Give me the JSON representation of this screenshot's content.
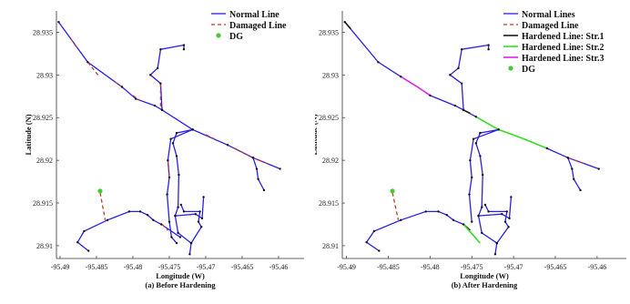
{
  "chart_data": [
    {
      "type": "line",
      "caption": "(a) Before Hardening",
      "xlabel": "Longitude (W)",
      "ylabel": "Latitude (N)",
      "xlim": [
        -95.4905,
        -95.4565
      ],
      "ylim": [
        28.9085,
        28.9375
      ],
      "xticks": [
        "-95.49",
        "-95.485",
        "-95.48",
        "-95.475",
        "-95.47",
        "-95.465",
        "-95.46"
      ],
      "xtick_values": [
        -95.49,
        -95.485,
        -95.48,
        -95.475,
        -95.47,
        -95.465,
        -95.46
      ],
      "yticks": [
        "28.91",
        "28.915",
        "28.92",
        "28.925",
        "28.93",
        "28.935"
      ],
      "ytick_values": [
        28.91,
        28.915,
        28.92,
        28.925,
        28.93,
        28.935
      ],
      "legend_position": "top-right",
      "legend": [
        {
          "label": "Normal Line",
          "style": "normal"
        },
        {
          "label": "Damaged Line",
          "style": "damaged"
        },
        {
          "label": "DG",
          "style": "dg"
        }
      ],
      "series": [
        {
          "name": "Normal Line",
          "style": "normal",
          "segments": [
            [
              [
                -95.4902,
                28.9362
              ],
              [
                -95.4862,
                28.9315
              ],
              [
                -95.4815,
                28.9286
              ],
              [
                -95.4796,
                28.9272
              ],
              [
                -95.477,
                28.9264
              ],
              [
                -95.476,
                28.9259
              ],
              [
                -95.4718,
                28.9236
              ],
              [
                -95.467,
                28.9218
              ],
              [
                -95.4635,
                28.9203
              ],
              [
                -95.4598,
                28.919
              ]
            ],
            [
              [
                -95.476,
                28.9259
              ],
              [
                -95.4762,
                28.929
              ],
              [
                -95.4776,
                28.93
              ],
              [
                -95.4766,
                28.9308
              ],
              [
                -95.4762,
                28.933
              ],
              [
                -95.473,
                28.9335
              ],
              [
                -95.473,
                28.933
              ]
            ],
            [
              [
                -95.4718,
                28.9236
              ],
              [
                -95.4748,
                28.9225
              ],
              [
                -95.4752,
                28.92
              ],
              [
                -95.475,
                28.918
              ],
              [
                -95.4753,
                28.916
              ],
              [
                -95.475,
                28.9128
              ],
              [
                -95.4747,
                28.911
              ],
              [
                -95.474,
                28.9103
              ]
            ],
            [
              [
                -95.4718,
                28.9236
              ],
              [
                -95.474,
                28.9232
              ],
              [
                -95.4745,
                28.922
              ],
              [
                -95.474,
                28.9205
              ],
              [
                -95.4737,
                28.9183
              ],
              [
                -95.4738,
                28.9145
              ],
              [
                -95.4742,
                28.9135
              ],
              [
                -95.4738,
                28.9115
              ],
              [
                -95.472,
                28.9103
              ],
              [
                -95.4722,
                28.909
              ]
            ],
            [
              [
                -95.472,
                28.9103
              ],
              [
                -95.4706,
                28.9122
              ],
              [
                -95.471,
                28.9128
              ],
              [
                -95.4708,
                28.914
              ],
              [
                -95.473,
                28.914
              ],
              [
                -95.4734,
                28.9148
              ]
            ],
            [
              [
                -95.4742,
                28.9135
              ],
              [
                -95.4714,
                28.9137
              ],
              [
                -95.4705,
                28.9132
              ],
              [
                -95.4703,
                28.9157
              ]
            ],
            [
              [
                -95.4735,
                28.911
              ],
              [
                -95.4761,
                28.9125
              ],
              [
                -95.4772,
                28.913
              ],
              [
                -95.478,
                28.9136
              ],
              [
                -95.479,
                28.914
              ],
              [
                -95.4805,
                28.914
              ],
              [
                -95.4835,
                28.913
              ],
              [
                -95.4867,
                28.9117
              ],
              [
                -95.4876,
                28.9104
              ],
              [
                -95.4861,
                28.9094
              ]
            ],
            [
              [
                -95.4635,
                28.9203
              ],
              [
                -95.463,
                28.919
              ],
              [
                -95.4628,
                28.9178
              ],
              [
                -95.462,
                28.9165
              ]
            ]
          ]
        },
        {
          "name": "Damaged Line",
          "style": "damaged",
          "segments": [
            [
              [
                -95.4885,
                28.9342
              ],
              [
                -95.4876,
                28.9331
              ]
            ],
            [
              [
                -95.4862,
                28.9315
              ],
              [
                -95.4848,
                28.93
              ]
            ],
            [
              [
                -95.4825,
                28.9292
              ],
              [
                -95.481,
                28.9283
              ]
            ],
            [
              [
                -95.48,
                28.9276
              ],
              [
                -95.479,
                28.927
              ]
            ],
            [
              [
                -95.4762,
                28.929
              ],
              [
                -95.4762,
                28.926
              ]
            ],
            [
              [
                -95.47,
                28.923
              ],
              [
                -95.4688,
                28.9225
              ]
            ],
            [
              [
                -95.466,
                28.9214
              ],
              [
                -95.464,
                28.9205
              ]
            ],
            [
              [
                -95.4635,
                28.9203
              ],
              [
                -95.4615,
                28.9196
              ]
            ],
            [
              [
                -95.4845,
                28.9162
              ],
              [
                -95.4838,
                28.913
              ]
            ],
            [
              [
                -95.4752,
                28.92
              ],
              [
                -95.475,
                28.918
              ]
            ],
            [
              [
                -95.476,
                28.9125
              ],
              [
                -95.4752,
                28.9118
              ]
            ]
          ]
        },
        {
          "name": "DG",
          "style": "dg",
          "points": [
            [
              -95.4845,
              28.9164
            ]
          ]
        }
      ]
    },
    {
      "type": "line",
      "caption": "(b) After Hardening",
      "xlabel": "Longitude (W)",
      "ylabel": "Latitude (N)",
      "xlim": [
        -95.4905,
        -95.4565
      ],
      "ylim": [
        28.9085,
        28.9375
      ],
      "xticks": [
        "-95.49",
        "-95.485",
        "-95.48",
        "-95.475",
        "-95.47",
        "-95.465",
        "-95.46"
      ],
      "xtick_values": [
        -95.49,
        -95.485,
        -95.48,
        -95.475,
        -95.47,
        -95.465,
        -95.46
      ],
      "yticks": [
        "28.91",
        "28.915",
        "28.92",
        "28.925",
        "28.93",
        "28.935"
      ],
      "ytick_values": [
        28.91,
        28.915,
        28.92,
        28.925,
        28.93,
        28.935
      ],
      "legend_position": "top-right",
      "legend": [
        {
          "label": "Normal Lines",
          "style": "normal"
        },
        {
          "label": "Damaged Line",
          "style": "damaged"
        },
        {
          "label": "Hardened Line: Str.1",
          "style": "hardened1"
        },
        {
          "label": "Hardened Line: Str.2",
          "style": "hardened2"
        },
        {
          "label": "Hardened Line: Str.3",
          "style": "hardened3"
        },
        {
          "label": "DG",
          "style": "dg"
        }
      ],
      "series": [
        {
          "name": "Normal Lines",
          "style": "normal",
          "segments": [
            [
              [
                -95.4902,
                28.9362
              ],
              [
                -95.4862,
                28.9315
              ],
              [
                -95.4835,
                28.9298
              ]
            ],
            [
              [
                -95.48,
                28.9276
              ],
              [
                -95.477,
                28.9264
              ],
              [
                -95.476,
                28.9259
              ],
              [
                -95.4745,
                28.9251
              ]
            ],
            [
              [
                -95.476,
                28.9259
              ],
              [
                -95.4762,
                28.929
              ],
              [
                -95.4776,
                28.93
              ],
              [
                -95.4766,
                28.9308
              ],
              [
                -95.4762,
                28.933
              ],
              [
                -95.473,
                28.9335
              ],
              [
                -95.473,
                28.933
              ]
            ],
            [
              [
                -95.4718,
                28.9236
              ],
              [
                -95.4748,
                28.9225
              ],
              [
                -95.4752,
                28.92
              ],
              [
                -95.475,
                28.918
              ],
              [
                -95.4753,
                28.916
              ],
              [
                -95.475,
                28.9128
              ]
            ],
            [
              [
                -95.4718,
                28.9236
              ],
              [
                -95.474,
                28.9232
              ],
              [
                -95.4745,
                28.922
              ],
              [
                -95.474,
                28.9205
              ],
              [
                -95.4737,
                28.9183
              ],
              [
                -95.4738,
                28.9145
              ],
              [
                -95.4742,
                28.9135
              ],
              [
                -95.4738,
                28.9115
              ],
              [
                -95.472,
                28.9103
              ],
              [
                -95.4722,
                28.909
              ]
            ],
            [
              [
                -95.472,
                28.9103
              ],
              [
                -95.4706,
                28.9122
              ],
              [
                -95.471,
                28.9128
              ],
              [
                -95.4708,
                28.914
              ],
              [
                -95.473,
                28.914
              ],
              [
                -95.4734,
                28.9148
              ]
            ],
            [
              [
                -95.4742,
                28.9135
              ],
              [
                -95.4714,
                28.9137
              ],
              [
                -95.4705,
                28.9132
              ],
              [
                -95.4703,
                28.9157
              ]
            ],
            [
              [
                -95.476,
                28.9125
              ],
              [
                -95.4772,
                28.913
              ],
              [
                -95.478,
                28.9136
              ],
              [
                -95.479,
                28.914
              ],
              [
                -95.4805,
                28.914
              ],
              [
                -95.4835,
                28.913
              ],
              [
                -95.4867,
                28.9117
              ],
              [
                -95.4876,
                28.9104
              ],
              [
                -95.4861,
                28.9094
              ]
            ],
            [
              [
                -95.466,
                28.9214
              ],
              [
                -95.4635,
                28.9203
              ],
              [
                -95.4598,
                28.919
              ]
            ],
            [
              [
                -95.4635,
                28.9203
              ],
              [
                -95.463,
                28.919
              ],
              [
                -95.4628,
                28.9178
              ],
              [
                -95.462,
                28.9165
              ]
            ]
          ]
        },
        {
          "name": "Damaged Line",
          "style": "damaged",
          "segments": [
            [
              [
                -95.4845,
                28.9162
              ],
              [
                -95.4838,
                28.913
              ]
            ],
            [
              [
                -95.4635,
                28.9203
              ],
              [
                -95.4615,
                28.9196
              ]
            ]
          ]
        },
        {
          "name": "Hardened Line: Str.1",
          "style": "hardened1",
          "segments": [
            [
              [
                -95.4902,
                28.9362
              ],
              [
                -95.4895,
                28.9354
              ]
            ],
            [
              [
                -95.476,
                28.9259
              ],
              [
                -95.4752,
                28.9255
              ]
            ],
            [
              [
                -95.476,
                28.9125
              ],
              [
                -95.4752,
                28.9118
              ]
            ]
          ]
        },
        {
          "name": "Hardened Line: Str.2",
          "style": "hardened2",
          "segments": [
            [
              [
                -95.4745,
                28.9251
              ],
              [
                -95.4718,
                28.9236
              ],
              [
                -95.469,
                28.9226
              ],
              [
                -95.466,
                28.9214
              ]
            ],
            [
              [
                -95.476,
                28.9125
              ],
              [
                -95.474,
                28.9103
              ]
            ]
          ]
        },
        {
          "name": "Hardened Line: Str.3",
          "style": "hardened3",
          "segments": [
            [
              [
                -95.4835,
                28.9298
              ],
              [
                -95.4815,
                28.9286
              ],
              [
                -95.48,
                28.9276
              ]
            ]
          ]
        },
        {
          "name": "DG",
          "style": "dg",
          "points": [
            [
              -95.4845,
              28.9164
            ]
          ]
        }
      ]
    }
  ],
  "styles": {
    "normal": {
      "color": "#2a1fe6"
    },
    "damaged": {
      "color": "#c0392b"
    },
    "hardened1": {
      "color": "#1a1a1a"
    },
    "hardened2": {
      "color": "#33dd22"
    },
    "hardened3": {
      "color": "#e020e0"
    },
    "dg": {
      "color": "#44cc33"
    },
    "node": {
      "color": "#111111"
    }
  }
}
